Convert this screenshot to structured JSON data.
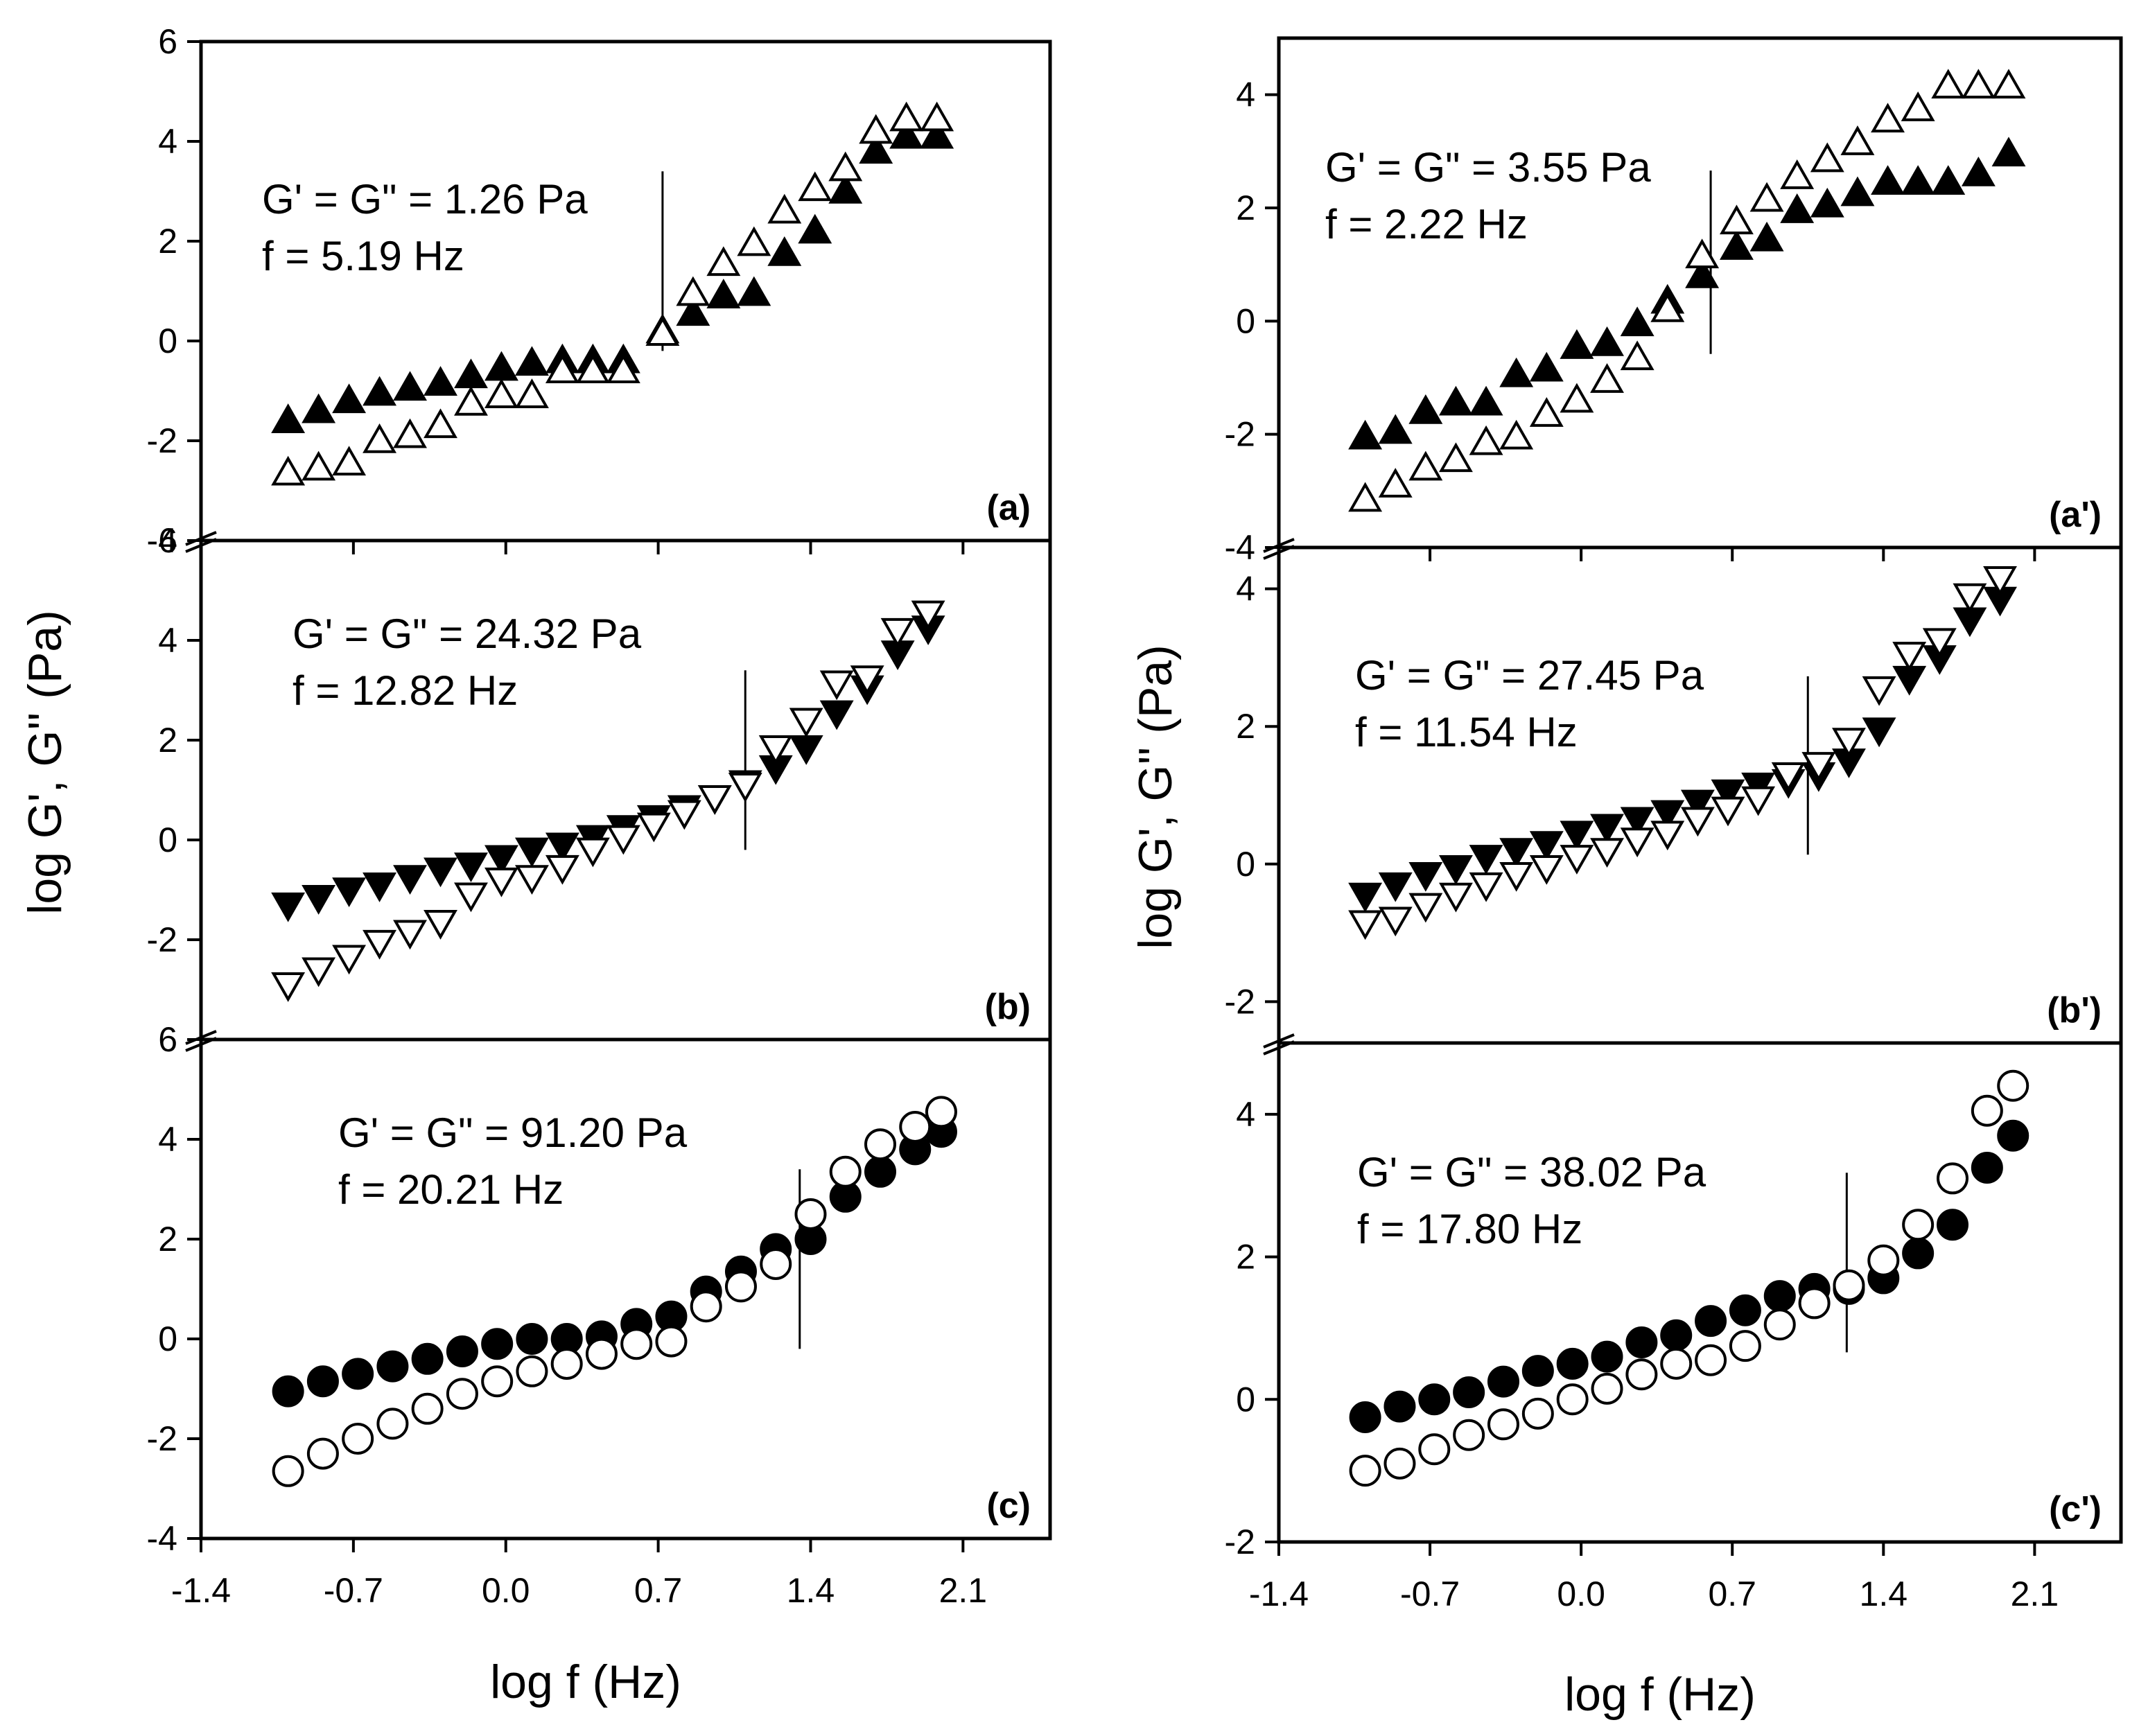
{
  "figure": {
    "left": {
      "ylabel": "log G', G'' (Pa)",
      "xlabel": "log f (Hz)"
    },
    "right": {
      "ylabel": "log G', G'' (Pa)",
      "xlabel": "log f (Hz)"
    }
  },
  "chart_data": [
    {
      "id": "a",
      "type": "scatter",
      "label": "(a)",
      "column": "left",
      "row": 0,
      "xlim": [
        -1.4,
        2.5
      ],
      "ylim": [
        -4,
        6
      ],
      "yticks": [
        -4,
        -2,
        0,
        2,
        4,
        6
      ],
      "xticks": [
        "-1.4",
        "-0.7",
        "0.0",
        "0.7",
        "1.4",
        "2.1"
      ],
      "marker": "triangle-up",
      "annotation": [
        "G' = G\" = 1.26 Pa",
        "f = 5.19 Hz"
      ],
      "crossover_x": 0.72,
      "x": [
        -1.0,
        -0.86,
        -0.72,
        -0.58,
        -0.44,
        -0.3,
        -0.16,
        -0.02,
        0.12,
        0.26,
        0.4,
        0.54,
        0.72,
        0.86,
        1.0,
        1.14,
        1.28,
        1.42,
        1.56,
        1.7,
        1.84,
        1.98
      ],
      "series": [
        {
          "name": "G'",
          "fill": "filled",
          "values": [
            -1.6,
            -1.4,
            -1.2,
            -1.05,
            -0.95,
            -0.85,
            -0.7,
            -0.55,
            -0.45,
            -0.4,
            -0.4,
            -0.4,
            0.2,
            0.55,
            0.9,
            0.95,
            1.75,
            2.2,
            3.0,
            3.8,
            4.1,
            4.1
          ]
        },
        {
          "name": "G''",
          "fill": "open",
          "values": [
            -2.65,
            -2.55,
            -2.45,
            -2.0,
            -1.9,
            -1.7,
            -1.25,
            -1.1,
            -1.1,
            -0.6,
            -0.6,
            -0.6,
            0.15,
            0.95,
            1.55,
            1.95,
            2.6,
            3.05,
            3.45,
            4.2,
            4.45,
            4.45
          ]
        }
      ]
    },
    {
      "id": "b",
      "type": "scatter",
      "label": "(b)",
      "column": "left",
      "row": 1,
      "xlim": [
        -1.4,
        2.5
      ],
      "ylim": [
        -4,
        6
      ],
      "yticks": [
        -2,
        0,
        2,
        4,
        6
      ],
      "xticks": [],
      "marker": "triangle-down",
      "annotation": [
        "G' = G\" = 24.32 Pa",
        "f = 12.82 Hz"
      ],
      "crossover_x": 1.1,
      "x": [
        -1.0,
        -0.86,
        -0.72,
        -0.58,
        -0.44,
        -0.3,
        -0.16,
        -0.02,
        0.12,
        0.26,
        0.4,
        0.54,
        0.68,
        0.82,
        0.96,
        1.1,
        1.24,
        1.38,
        1.52,
        1.66,
        1.8,
        1.94
      ],
      "series": [
        {
          "name": "G'",
          "fill": "filled",
          "values": [
            -1.3,
            -1.15,
            -1.0,
            -0.9,
            -0.75,
            -0.6,
            -0.5,
            -0.35,
            -0.2,
            -0.1,
            0.05,
            0.25,
            0.45,
            0.65,
            0.85,
            1.15,
            1.45,
            1.85,
            2.55,
            3.05,
            3.75,
            4.25
          ]
        },
        {
          "name": "G''",
          "fill": "open",
          "values": [
            -2.9,
            -2.6,
            -2.35,
            -2.05,
            -1.85,
            -1.65,
            -1.1,
            -0.8,
            -0.75,
            -0.55,
            -0.2,
            0.05,
            0.3,
            0.55,
            0.85,
            1.1,
            1.85,
            2.4,
            3.15,
            3.25,
            4.2,
            4.55
          ]
        }
      ]
    },
    {
      "id": "c",
      "type": "scatter",
      "label": "(c)",
      "column": "left",
      "row": 2,
      "xlim": [
        -1.4,
        2.5
      ],
      "ylim": [
        -4,
        6
      ],
      "yticks": [
        -4,
        -2,
        0,
        2,
        4,
        6
      ],
      "xticks": [
        "-1.4",
        "-0.7",
        "0.0",
        "0.7",
        "1.4",
        "2.1"
      ],
      "marker": "circle",
      "annotation": [
        "G' = G\" = 91.20 Pa",
        "f = 20.21 Hz"
      ],
      "crossover_x": 1.35,
      "x": [
        -1.0,
        -0.84,
        -0.68,
        -0.52,
        -0.36,
        -0.2,
        -0.04,
        0.12,
        0.28,
        0.44,
        0.6,
        0.76,
        0.92,
        1.08,
        1.24,
        1.4,
        1.56,
        1.72,
        1.88,
        2.0
      ],
      "series": [
        {
          "name": "G'",
          "fill": "filled",
          "values": [
            -1.05,
            -0.85,
            -0.7,
            -0.55,
            -0.4,
            -0.25,
            -0.1,
            0.0,
            0.0,
            0.05,
            0.3,
            0.45,
            0.95,
            1.35,
            1.8,
            2.0,
            2.85,
            3.35,
            3.8,
            4.15
          ]
        },
        {
          "name": "G''",
          "fill": "open",
          "values": [
            -2.65,
            -2.3,
            -2.0,
            -1.7,
            -1.4,
            -1.1,
            -0.85,
            -0.65,
            -0.5,
            -0.3,
            -0.1,
            -0.05,
            0.65,
            1.05,
            1.5,
            2.5,
            3.35,
            3.9,
            4.25,
            4.55
          ]
        }
      ]
    },
    {
      "id": "a'",
      "type": "scatter",
      "label": "(a')",
      "column": "right",
      "row": 0,
      "xlim": [
        -1.4,
        2.5
      ],
      "ylim": [
        -4,
        5
      ],
      "yticks": [
        -4,
        -2,
        0,
        2,
        4
      ],
      "xticks": [
        "-1.4",
        "-0.7",
        "0.0",
        "0.7",
        "1.4",
        "2.1"
      ],
      "marker": "triangle-up",
      "annotation": [
        "G' = G\" = 3.55 Pa",
        "f = 2.22 Hz"
      ],
      "crossover_x": 0.6,
      "x": [
        -1.0,
        -0.86,
        -0.72,
        -0.58,
        -0.44,
        -0.3,
        -0.16,
        -0.02,
        0.12,
        0.26,
        0.4,
        0.56,
        0.72,
        0.86,
        1.0,
        1.14,
        1.28,
        1.42,
        1.56,
        1.7,
        1.84,
        1.98
      ],
      "series": [
        {
          "name": "G'",
          "fill": "filled",
          "values": [
            -2.05,
            -1.95,
            -1.6,
            -1.45,
            -1.45,
            -0.95,
            -0.85,
            -0.45,
            -0.4,
            -0.05,
            0.35,
            0.8,
            1.3,
            1.45,
            1.95,
            2.05,
            2.25,
            2.45,
            2.45,
            2.45,
            2.6,
            2.95
          ]
        },
        {
          "name": "G''",
          "fill": "open",
          "values": [
            -3.15,
            -2.9,
            -2.6,
            -2.45,
            -2.15,
            -2.05,
            -1.65,
            -1.4,
            -1.05,
            -0.65,
            0.2,
            1.15,
            1.75,
            2.15,
            2.55,
            2.85,
            3.15,
            3.55,
            3.75,
            4.15,
            4.15,
            4.15
          ]
        }
      ]
    },
    {
      "id": "b'",
      "type": "scatter",
      "label": "(b')",
      "column": "right",
      "row": 1,
      "xlim": [
        -1.4,
        2.5
      ],
      "ylim": [
        -2.6,
        4.6
      ],
      "yticks": [
        -2,
        0,
        2,
        4
      ],
      "xticks": [],
      "marker": "triangle-down",
      "annotation": [
        "G' = G\" = 27.45 Pa",
        "f = 11.54 Hz"
      ],
      "crossover_x": 1.05,
      "x": [
        -1.0,
        -0.86,
        -0.72,
        -0.58,
        -0.44,
        -0.3,
        -0.16,
        -0.02,
        0.12,
        0.26,
        0.4,
        0.54,
        0.68,
        0.82,
        0.96,
        1.1,
        1.24,
        1.38,
        1.52,
        1.66,
        1.8,
        1.94
      ],
      "series": [
        {
          "name": "G'",
          "fill": "filled",
          "values": [
            -0.45,
            -0.3,
            -0.15,
            -0.05,
            0.1,
            0.2,
            0.3,
            0.45,
            0.55,
            0.65,
            0.75,
            0.9,
            1.05,
            1.15,
            1.2,
            1.3,
            1.5,
            1.95,
            2.7,
            3.0,
            3.55,
            3.85
          ]
        },
        {
          "name": "G''",
          "fill": "open",
          "values": [
            -0.85,
            -0.8,
            -0.6,
            -0.45,
            -0.3,
            -0.15,
            -0.05,
            0.1,
            0.2,
            0.35,
            0.45,
            0.65,
            0.8,
            0.95,
            1.3,
            1.45,
            1.8,
            2.55,
            3.05,
            3.25,
            3.9,
            4.15
          ]
        }
      ]
    },
    {
      "id": "c'",
      "type": "scatter",
      "label": "(c')",
      "column": "right",
      "row": 2,
      "xlim": [
        -1.4,
        2.5
      ],
      "ylim": [
        -2,
        5
      ],
      "yticks": [
        -2,
        0,
        2,
        4
      ],
      "xticks": [
        "-1.4",
        "-0.7",
        "0.0",
        "0.7",
        "1.4",
        "2.1"
      ],
      "marker": "circle",
      "annotation": [
        "G' = G\" = 38.02 Pa",
        "f = 17.80 Hz"
      ],
      "crossover_x": 1.23,
      "x": [
        -1.0,
        -0.84,
        -0.68,
        -0.52,
        -0.36,
        -0.2,
        -0.04,
        0.12,
        0.28,
        0.44,
        0.6,
        0.76,
        0.92,
        1.08,
        1.24,
        1.4,
        1.56,
        1.72,
        1.88,
        2.0
      ],
      "series": [
        {
          "name": "G'",
          "fill": "filled",
          "values": [
            -0.25,
            -0.1,
            0.0,
            0.1,
            0.25,
            0.4,
            0.5,
            0.6,
            0.8,
            0.9,
            1.1,
            1.25,
            1.45,
            1.55,
            1.55,
            1.7,
            2.05,
            2.45,
            3.25,
            3.7
          ]
        },
        {
          "name": "G''",
          "fill": "open",
          "values": [
            -1.0,
            -0.9,
            -0.7,
            -0.5,
            -0.35,
            -0.2,
            0.0,
            0.15,
            0.35,
            0.5,
            0.55,
            0.75,
            1.05,
            1.35,
            1.6,
            1.95,
            2.45,
            3.1,
            4.05,
            4.4
          ]
        }
      ]
    }
  ]
}
